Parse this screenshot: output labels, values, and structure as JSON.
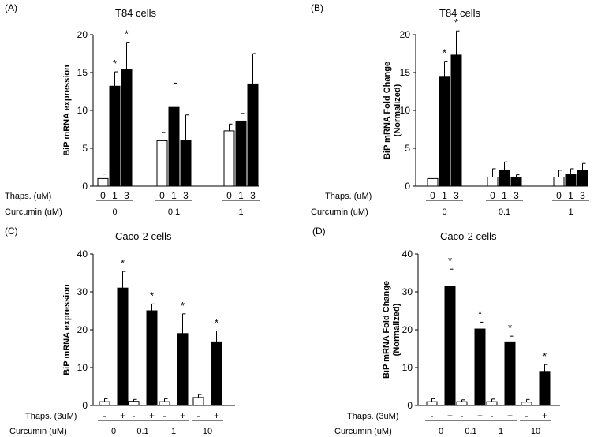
{
  "figure": "BiP mRNA expression in T84 and Caco-2 cells",
  "chart_data": [
    {
      "panel": "(A)",
      "type": "bar",
      "title": "T84 cells",
      "ylabel": "BiP  mRNA  expression",
      "ylim": [
        0,
        20
      ],
      "yticks": [
        0,
        5,
        10,
        15,
        20
      ],
      "x_row1_label": "Thaps. (uM)",
      "x_row2_label": "Curcumin (uM)",
      "groups": [
        {
          "name": "0",
          "bars": [
            {
              "label": "0",
              "value": 1.0,
              "err": 0.6,
              "fill": "white",
              "sig": ""
            },
            {
              "label": "1",
              "value": 13.2,
              "err": 1.9,
              "fill": "black",
              "sig": "*"
            },
            {
              "label": "3",
              "value": 15.4,
              "err": 3.6,
              "fill": "black",
              "sig": "*"
            }
          ]
        },
        {
          "name": "0.1",
          "bars": [
            {
              "label": "0",
              "value": 6.0,
              "err": 1.1,
              "fill": "white",
              "sig": ""
            },
            {
              "label": "1",
              "value": 10.4,
              "err": 3.2,
              "fill": "black",
              "sig": ""
            },
            {
              "label": "3",
              "value": 6.0,
              "err": 3.4,
              "fill": "black",
              "sig": ""
            }
          ]
        },
        {
          "name": "1",
          "bars": [
            {
              "label": "0",
              "value": 7.3,
              "err": 0.9,
              "fill": "white",
              "sig": ""
            },
            {
              "label": "1",
              "value": 8.6,
              "err": 1.0,
              "fill": "black",
              "sig": ""
            },
            {
              "label": "3",
              "value": 13.5,
              "err": 4.0,
              "fill": "black",
              "sig": ""
            }
          ]
        }
      ]
    },
    {
      "panel": "(B)",
      "type": "bar",
      "title": "T84 cells",
      "ylabel": "BiP  mRNA  Fold Change",
      "ylabel2": "(Normalized)",
      "ylim": [
        0,
        20
      ],
      "yticks": [
        0,
        5,
        10,
        15,
        20
      ],
      "x_row1_label": "Thaps. (uM)",
      "x_row2_label": "Curcumin (uM)",
      "groups": [
        {
          "name": "0",
          "bars": [
            {
              "label": "0",
              "value": 1.0,
              "err": 0,
              "fill": "white",
              "sig": ""
            },
            {
              "label": "1",
              "value": 14.5,
              "err": 2.0,
              "fill": "black",
              "sig": "*"
            },
            {
              "label": "3",
              "value": 17.3,
              "err": 3.2,
              "fill": "black",
              "sig": "*"
            }
          ]
        },
        {
          "name": "0.1",
          "bars": [
            {
              "label": "0",
              "value": 1.2,
              "err": 1.1,
              "fill": "white",
              "sig": ""
            },
            {
              "label": "1",
              "value": 2.1,
              "err": 1.1,
              "fill": "black",
              "sig": ""
            },
            {
              "label": "3",
              "value": 1.2,
              "err": 0.3,
              "fill": "black",
              "sig": ""
            }
          ]
        },
        {
          "name": "1",
          "bars": [
            {
              "label": "0",
              "value": 1.2,
              "err": 0.9,
              "fill": "white",
              "sig": ""
            },
            {
              "label": "1",
              "value": 1.6,
              "err": 0.7,
              "fill": "black",
              "sig": ""
            },
            {
              "label": "3",
              "value": 2.1,
              "err": 0.9,
              "fill": "black",
              "sig": ""
            }
          ]
        }
      ]
    },
    {
      "panel": "(C)",
      "type": "bar",
      "title": "Caco-2 cells",
      "ylabel": "BiP  mRNA  expression",
      "ylim": [
        0,
        40
      ],
      "yticks": [
        0,
        10,
        20,
        30,
        40
      ],
      "x_row1_label": "Thaps. (3uM)",
      "x_row2_label": "Curcumin (uM)",
      "groups": [
        {
          "name": "0",
          "bars": [
            {
              "label": "-",
              "value": 1.0,
              "err": 0.8,
              "fill": "white",
              "sig": ""
            },
            {
              "label": "+",
              "value": 31.0,
              "err": 4.4,
              "fill": "black",
              "sig": "*"
            }
          ]
        },
        {
          "name": "0.1",
          "bars": [
            {
              "label": "-",
              "value": 1.1,
              "err": 0.5,
              "fill": "white",
              "sig": ""
            },
            {
              "label": "+",
              "value": 25.0,
              "err": 1.8,
              "fill": "black",
              "sig": "*"
            }
          ]
        },
        {
          "name": "1",
          "bars": [
            {
              "label": "-",
              "value": 1.0,
              "err": 0.8,
              "fill": "white",
              "sig": ""
            },
            {
              "label": "+",
              "value": 19.0,
              "err": 5.2,
              "fill": "black",
              "sig": "*"
            }
          ]
        },
        {
          "name": "10",
          "bars": [
            {
              "label": "-",
              "value": 2.1,
              "err": 0.8,
              "fill": "white",
              "sig": ""
            },
            {
              "label": "+",
              "value": 16.8,
              "err": 2.9,
              "fill": "black",
              "sig": "*"
            }
          ]
        }
      ]
    },
    {
      "panel": "(D)",
      "type": "bar",
      "title": "Caco-2 cells",
      "ylabel": "BiP  mRNA  Fold  Change",
      "ylabel2": "(Normalized)",
      "ylim": [
        0,
        40
      ],
      "yticks": [
        0,
        10,
        20,
        30,
        40
      ],
      "x_row1_label": "Thaps. (3uM)",
      "x_row2_label": "Curcumin (uM)",
      "groups": [
        {
          "name": "0",
          "bars": [
            {
              "label": "-",
              "value": 1.0,
              "err": 0.8,
              "fill": "white",
              "sig": ""
            },
            {
              "label": "+",
              "value": 31.5,
              "err": 4.5,
              "fill": "black",
              "sig": "*"
            }
          ]
        },
        {
          "name": "0.1",
          "bars": [
            {
              "label": "-",
              "value": 1.0,
              "err": 0.5,
              "fill": "white",
              "sig": ""
            },
            {
              "label": "+",
              "value": 20.2,
              "err": 1.8,
              "fill": "black",
              "sig": "*"
            }
          ]
        },
        {
          "name": "1",
          "bars": [
            {
              "label": "-",
              "value": 1.0,
              "err": 0.7,
              "fill": "white",
              "sig": ""
            },
            {
              "label": "+",
              "value": 16.8,
              "err": 1.5,
              "fill": "black",
              "sig": "*"
            }
          ]
        },
        {
          "name": "10",
          "bars": [
            {
              "label": "-",
              "value": 0.9,
              "err": 0.7,
              "fill": "white",
              "sig": ""
            },
            {
              "label": "+",
              "value": 9.0,
              "err": 1.8,
              "fill": "black",
              "sig": "*"
            }
          ]
        }
      ]
    }
  ]
}
